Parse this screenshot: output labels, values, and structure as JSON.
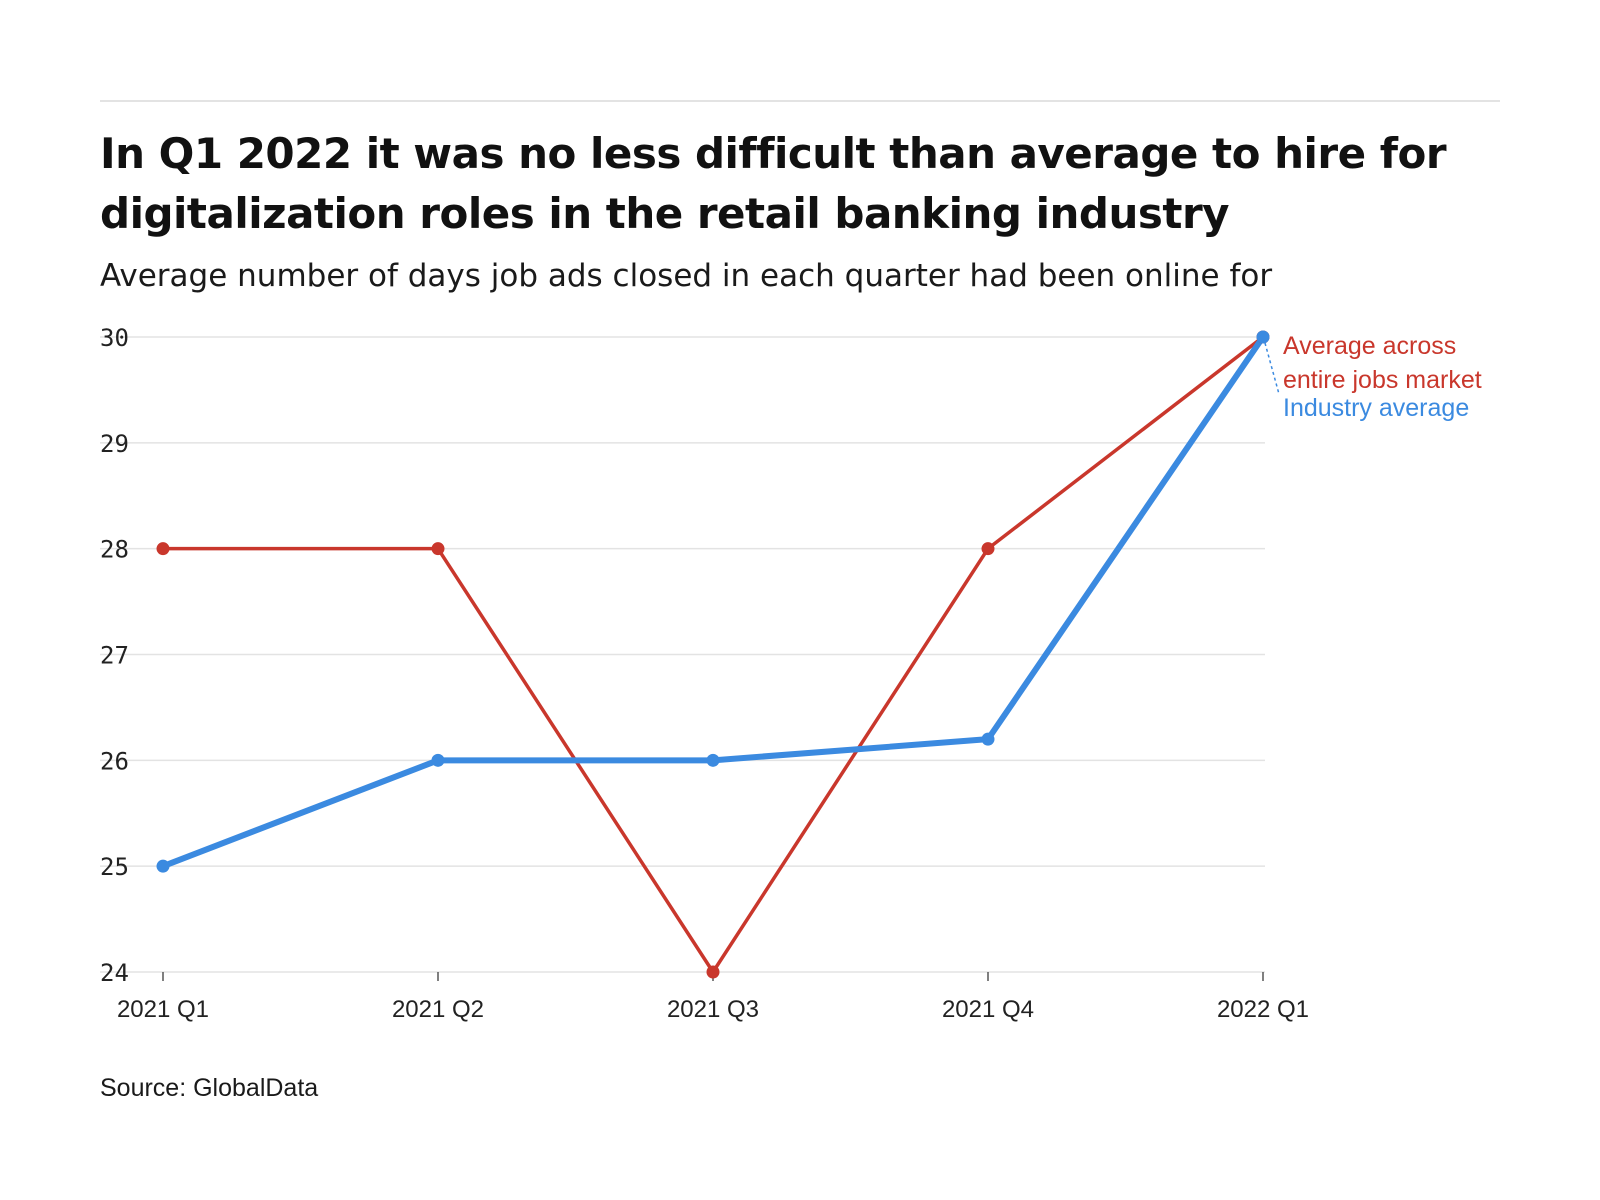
{
  "header": {
    "title": "In Q1 2022 it was no less difficult than average to hire for digitalization roles in the retail banking industry",
    "subtitle": "Average number of days job ads closed in each quarter had been online for"
  },
  "footer": {
    "source": "Source: GlobalData"
  },
  "colors": {
    "market": "#c9372c",
    "industry": "#3b8ae0",
    "grid": "#e3e3e3",
    "axis_text": "#222222"
  },
  "chart_data": {
    "type": "line",
    "categories": [
      "2021 Q1",
      "2021 Q2",
      "2021 Q3",
      "2021 Q4",
      "2022 Q1"
    ],
    "ylim": [
      24,
      30
    ],
    "yticks": [
      "24",
      "25",
      "26",
      "27",
      "28",
      "29",
      "30"
    ],
    "grid": true,
    "series": [
      {
        "name": "Average across entire jobs market",
        "label_lines": [
          "Average across",
          "entire jobs market"
        ],
        "color": "#c9372c",
        "values": [
          28,
          28,
          24,
          28,
          30
        ]
      },
      {
        "name": "Industry average",
        "label_lines": [
          "Industry average"
        ],
        "color": "#3b8ae0",
        "values": [
          25,
          26,
          26,
          26.2,
          30
        ]
      }
    ]
  }
}
